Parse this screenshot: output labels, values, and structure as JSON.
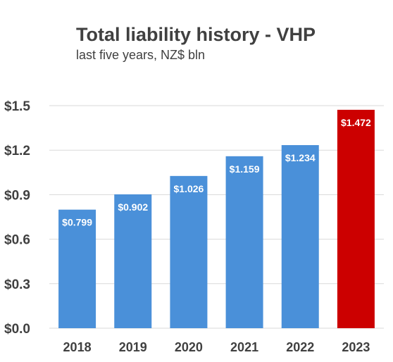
{
  "chart_data": {
    "type": "bar",
    "title": "Total liability history - VHP",
    "subtitle": "last five years, NZ$ bln",
    "xlabel": "",
    "ylabel": "",
    "categories": [
      "2018",
      "2019",
      "2020",
      "2021",
      "2022",
      "2023"
    ],
    "values": [
      0.799,
      0.902,
      1.026,
      1.159,
      1.234,
      1.472
    ],
    "data_labels": [
      "$0.799",
      "$0.902",
      "$1.026",
      "$1.159",
      "$1.234",
      "$1.472"
    ],
    "bar_colors": [
      "#4a90d9",
      "#4a90d9",
      "#4a90d9",
      "#4a90d9",
      "#4a90d9",
      "#cc0000"
    ],
    "ylim": [
      0,
      1.5
    ],
    "yticks": [
      0,
      0.3,
      0.6,
      0.9,
      1.2,
      1.5
    ],
    "ytick_labels": [
      "$0.0",
      "$0.3",
      "$0.6",
      "$0.9",
      "$1.2",
      "$1.5"
    ],
    "grid": true,
    "legend": "none"
  }
}
